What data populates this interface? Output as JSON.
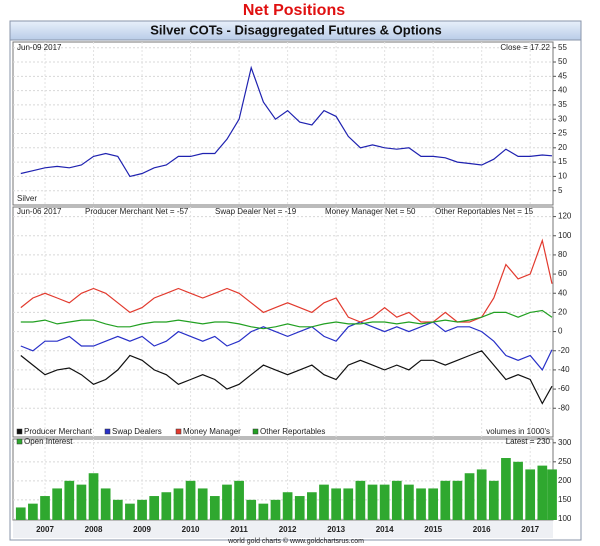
{
  "header": {
    "title": "Net Positions",
    "subtitle": "Silver COTs - Disaggregated Futures & Options"
  },
  "footer": "world gold charts © www.goldchartsrus.com",
  "chart_data": [
    {
      "type": "line",
      "annotations": [
        "Jun-09 2017",
        "Close = 17.22",
        "Silver"
      ],
      "x": [
        2006.5,
        2006.75,
        2007,
        2007.25,
        2007.5,
        2007.75,
        2008,
        2008.25,
        2008.5,
        2008.75,
        2009,
        2009.25,
        2009.5,
        2009.75,
        2010,
        2010.25,
        2010.5,
        2010.75,
        2011,
        2011.25,
        2011.5,
        2011.75,
        2012,
        2012.25,
        2012.5,
        2012.75,
        2013,
        2013.25,
        2013.5,
        2013.75,
        2014,
        2014.25,
        2014.5,
        2014.75,
        2015,
        2015.25,
        2015.5,
        2015.75,
        2016,
        2016.25,
        2016.5,
        2016.75,
        2017,
        2017.25,
        2017.45
      ],
      "series": [
        {
          "name": "Silver",
          "color": "#1f22b0",
          "values": [
            11,
            12,
            13,
            13.5,
            13,
            14,
            17,
            18,
            17,
            10,
            11,
            13,
            14,
            17,
            17,
            18,
            18,
            23,
            30,
            48,
            36,
            30,
            33,
            29,
            28,
            33,
            31,
            24,
            20,
            21,
            20,
            19.5,
            20,
            17,
            17,
            16.5,
            15,
            14.5,
            14,
            16,
            19.5,
            17,
            17,
            17.5,
            17.22
          ]
        }
      ],
      "xlim": [
        2006.34,
        2017.47
      ],
      "xticks": [
        2007,
        2008,
        2009,
        2010,
        2011,
        2012,
        2013,
        2014,
        2015,
        2016,
        2017
      ],
      "ylim": [
        0,
        57
      ],
      "yticks": [
        5,
        10,
        15,
        20,
        25,
        30,
        35,
        40,
        45,
        50,
        55
      ],
      "grid": true
    },
    {
      "type": "line",
      "annotations": [
        "Jun-06 2017",
        "Producer Merchant Net = -57",
        "Swap Dealer Net = -19",
        "Money Manager Net = 50",
        "Other Reportables Net = 15",
        "volumes in 1000's"
      ],
      "x": [
        2006.5,
        2006.75,
        2007,
        2007.25,
        2007.5,
        2007.75,
        2008,
        2008.25,
        2008.5,
        2008.75,
        2009,
        2009.25,
        2009.5,
        2009.75,
        2010,
        2010.25,
        2010.5,
        2010.75,
        2011,
        2011.25,
        2011.5,
        2011.75,
        2012,
        2012.25,
        2012.5,
        2012.75,
        2013,
        2013.25,
        2013.5,
        2013.75,
        2014,
        2014.25,
        2014.5,
        2014.75,
        2015,
        2015.25,
        2015.5,
        2015.75,
        2016,
        2016.25,
        2016.5,
        2016.75,
        2017,
        2017.25,
        2017.45
      ],
      "series": [
        {
          "name": "Producer Merchant",
          "color": "#111111",
          "values": [
            -25,
            -35,
            -45,
            -40,
            -38,
            -45,
            -55,
            -50,
            -40,
            -25,
            -30,
            -40,
            -45,
            -55,
            -50,
            -45,
            -50,
            -60,
            -55,
            -45,
            -35,
            -40,
            -45,
            -40,
            -35,
            -45,
            -50,
            -35,
            -30,
            -35,
            -40,
            -35,
            -40,
            -30,
            -30,
            -35,
            -30,
            -25,
            -20,
            -35,
            -50,
            -45,
            -50,
            -75,
            -57
          ]
        },
        {
          "name": "Swap Dealers",
          "color": "#2830c8",
          "values": [
            -15,
            -20,
            -10,
            -10,
            -5,
            -15,
            -15,
            -10,
            -5,
            -10,
            -5,
            -15,
            -10,
            0,
            -5,
            -10,
            -5,
            -15,
            -10,
            0,
            5,
            0,
            -5,
            0,
            5,
            -5,
            -10,
            5,
            10,
            5,
            0,
            5,
            0,
            5,
            10,
            0,
            5,
            5,
            0,
            -10,
            -25,
            -30,
            -25,
            -40,
            -19
          ]
        },
        {
          "name": "Money Manager",
          "color": "#e23a2e",
          "values": [
            25,
            35,
            40,
            35,
            30,
            40,
            45,
            40,
            30,
            20,
            25,
            35,
            40,
            45,
            40,
            35,
            40,
            45,
            40,
            30,
            20,
            25,
            30,
            25,
            20,
            30,
            35,
            15,
            10,
            15,
            25,
            15,
            20,
            10,
            10,
            20,
            10,
            10,
            15,
            35,
            70,
            55,
            60,
            95,
            50
          ]
        },
        {
          "name": "Other Reportables",
          "color": "#22a022",
          "values": [
            10,
            10,
            12,
            8,
            10,
            12,
            12,
            8,
            5,
            5,
            8,
            10,
            10,
            12,
            10,
            8,
            10,
            10,
            8,
            5,
            3,
            5,
            8,
            5,
            5,
            8,
            10,
            8,
            8,
            10,
            10,
            8,
            10,
            8,
            10,
            12,
            10,
            12,
            15,
            20,
            20,
            15,
            20,
            22,
            15
          ]
        }
      ],
      "xlim": [
        2006.34,
        2017.47
      ],
      "xticks": [
        2007,
        2008,
        2009,
        2010,
        2011,
        2012,
        2013,
        2014,
        2015,
        2016,
        2017
      ],
      "ylim": [
        -110,
        130
      ],
      "yticks": [
        -80,
        -60,
        -40,
        -20,
        0,
        20,
        40,
        60,
        80,
        100,
        120
      ],
      "grid": true
    },
    {
      "type": "bar",
      "annotations": [
        "Latest = 230"
      ],
      "x": [
        2006.5,
        2006.75,
        2007,
        2007.25,
        2007.5,
        2007.75,
        2008,
        2008.25,
        2008.5,
        2008.75,
        2009,
        2009.25,
        2009.5,
        2009.75,
        2010,
        2010.25,
        2010.5,
        2010.75,
        2011,
        2011.25,
        2011.5,
        2011.75,
        2012,
        2012.25,
        2012.5,
        2012.75,
        2013,
        2013.25,
        2013.5,
        2013.75,
        2014,
        2014.25,
        2014.5,
        2014.75,
        2015,
        2015.25,
        2015.5,
        2015.75,
        2016,
        2016.25,
        2016.5,
        2016.75,
        2017,
        2017.25,
        2017.45
      ],
      "series": [
        {
          "name": "Open Interest",
          "color": "#2fa82f",
          "values": [
            130,
            140,
            160,
            180,
            200,
            190,
            220,
            180,
            150,
            140,
            150,
            160,
            170,
            180,
            200,
            180,
            160,
            190,
            200,
            150,
            140,
            150,
            170,
            160,
            170,
            190,
            180,
            180,
            200,
            190,
            190,
            200,
            190,
            180,
            180,
            200,
            200,
            220,
            230,
            200,
            260,
            250,
            230,
            240,
            230
          ]
        }
      ],
      "xlim": [
        2006.34,
        2017.47
      ],
      "xticks": [
        2007,
        2008,
        2009,
        2010,
        2011,
        2012,
        2013,
        2014,
        2015,
        2016,
        2017
      ],
      "ylim": [
        97,
        310
      ],
      "yticks": [
        100,
        150,
        200,
        250,
        300
      ],
      "grid": true
    }
  ]
}
